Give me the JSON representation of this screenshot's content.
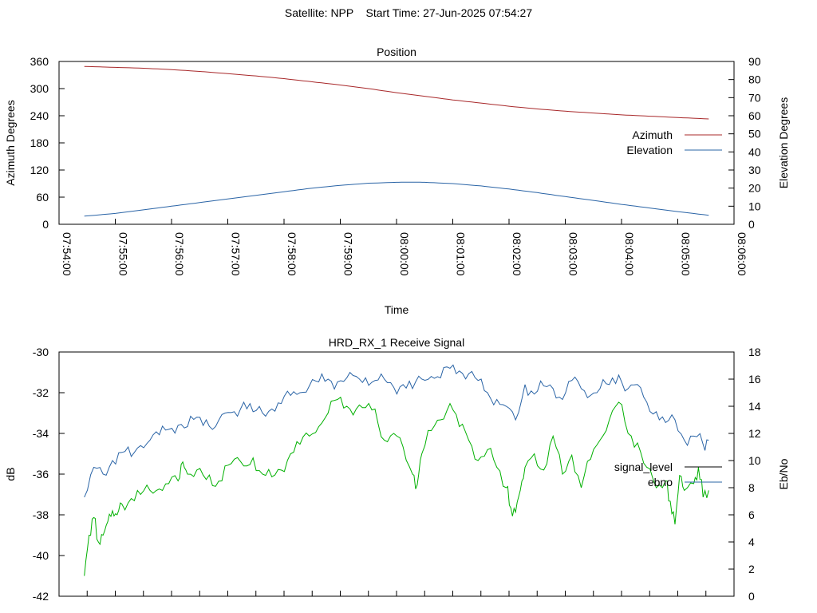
{
  "header": {
    "satellite": "Satellite: NPP",
    "start_time": "Start Time: 27-Jun-2025 07:54:27"
  },
  "chart_data": [
    {
      "type": "line",
      "title": "Position",
      "xlabel": "Time",
      "ylabel": "Azimuth Degrees",
      "y2label": "Elevation Degrees",
      "x_ticks": [
        "07:54:00",
        "07:55:00",
        "07:56:00",
        "07:57:00",
        "07:58:00",
        "07:59:00",
        "08:00:00",
        "08:01:00",
        "08:02:00",
        "08:03:00",
        "08:04:00",
        "08:05:00",
        "08:06:00"
      ],
      "xlim": [
        "07:54:00",
        "08:06:00"
      ],
      "ylim": [
        0,
        360
      ],
      "y_ticks": [
        0,
        60,
        120,
        180,
        240,
        300,
        360
      ],
      "y2lim": [
        0,
        90
      ],
      "y2_ticks": [
        0,
        10,
        20,
        30,
        40,
        50,
        60,
        70,
        80,
        90
      ],
      "legend": "right",
      "grid": false,
      "series": [
        {
          "name": "Azimuth",
          "axis": "y",
          "color": "#a8282a",
          "points": [
            [
              "07:54:27",
              349
            ],
            [
              "07:55:00",
              347
            ],
            [
              "07:55:30",
              345
            ],
            [
              "07:56:00",
              342
            ],
            [
              "07:56:30",
              338
            ],
            [
              "07:57:00",
              333
            ],
            [
              "07:57:30",
              328
            ],
            [
              "07:58:00",
              322
            ],
            [
              "07:58:30",
              315
            ],
            [
              "07:59:00",
              308
            ],
            [
              "07:59:30",
              300
            ],
            [
              "08:00:00",
              291
            ],
            [
              "08:00:30",
              283
            ],
            [
              "08:01:00",
              275
            ],
            [
              "08:01:30",
              268
            ],
            [
              "08:02:00",
              261
            ],
            [
              "08:02:30",
              255
            ],
            [
              "08:03:00",
              250
            ],
            [
              "08:03:30",
              246
            ],
            [
              "08:04:00",
              242
            ],
            [
              "08:04:30",
              239
            ],
            [
              "08:05:00",
              236
            ],
            [
              "08:05:33",
              233
            ]
          ]
        },
        {
          "name": "Elevation",
          "axis": "y2",
          "color": "#2a64a6",
          "points": [
            [
              "07:54:27",
              4.5
            ],
            [
              "07:55:00",
              6
            ],
            [
              "07:55:30",
              8
            ],
            [
              "07:56:00",
              10
            ],
            [
              "07:56:30",
              12
            ],
            [
              "07:57:00",
              14
            ],
            [
              "07:57:30",
              16
            ],
            [
              "07:58:00",
              18
            ],
            [
              "07:58:30",
              20
            ],
            [
              "07:59:00",
              21.5
            ],
            [
              "07:59:30",
              22.7
            ],
            [
              "08:00:00",
              23.2
            ],
            [
              "08:00:15",
              23.3
            ],
            [
              "08:00:30",
              23.2
            ],
            [
              "08:01:00",
              22.5
            ],
            [
              "08:01:30",
              21.2
            ],
            [
              "08:02:00",
              19.5
            ],
            [
              "08:02:30",
              17.5
            ],
            [
              "08:03:00",
              15.3
            ],
            [
              "08:03:30",
              13.2
            ],
            [
              "08:04:00",
              11
            ],
            [
              "08:04:30",
              9
            ],
            [
              "08:05:00",
              7
            ],
            [
              "08:05:33",
              5
            ]
          ]
        }
      ]
    },
    {
      "type": "line",
      "title": "HRD_RX_1 Receive Signal",
      "ylabel": "dB",
      "y2label": "Eb/No",
      "xlim": [
        "07:54:00",
        "08:06:00"
      ],
      "ylim": [
        -42,
        -30
      ],
      "y_ticks": [
        -42,
        -40,
        -38,
        -36,
        -34,
        -32,
        -30
      ],
      "y2lim": [
        0,
        18
      ],
      "y2_ticks": [
        0,
        2,
        4,
        6,
        8,
        10,
        12,
        14,
        16,
        18
      ],
      "legend": "right",
      "grid": false,
      "series": [
        {
          "name": "signal_level",
          "axis": "y",
          "color": "#000000",
          "points": []
        },
        {
          "name": "ebno",
          "axis": "y2",
          "color": "#2a64a6",
          "points": [
            [
              "07:54:27",
              7.3
            ],
            [
              "07:54:37",
              9.5
            ],
            [
              "07:54:47",
              9.0
            ],
            [
              "07:54:57",
              10.0
            ],
            [
              "07:55:07",
              10.6
            ],
            [
              "07:55:17",
              10.3
            ],
            [
              "07:55:27",
              11.1
            ],
            [
              "07:55:37",
              11.5
            ],
            [
              "07:55:47",
              11.9
            ],
            [
              "07:55:57",
              12.3
            ],
            [
              "07:56:07",
              12.6
            ],
            [
              "07:56:17",
              12.5
            ],
            [
              "07:56:27",
              13.2
            ],
            [
              "07:56:37",
              13.0
            ],
            [
              "07:56:47",
              12.5
            ],
            [
              "07:56:57",
              13.5
            ],
            [
              "07:57:07",
              13.6
            ],
            [
              "07:57:17",
              14.3
            ],
            [
              "07:57:27",
              13.6
            ],
            [
              "07:57:37",
              13.5
            ],
            [
              "07:57:47",
              13.8
            ],
            [
              "07:57:57",
              14.2
            ],
            [
              "07:58:07",
              14.8
            ],
            [
              "07:58:17",
              15.0
            ],
            [
              "07:58:27",
              15.5
            ],
            [
              "07:58:37",
              15.8
            ],
            [
              "07:58:47",
              16.0
            ],
            [
              "07:58:57",
              15.8
            ],
            [
              "07:59:07",
              16.1
            ],
            [
              "07:59:17",
              16.2
            ],
            [
              "07:59:27",
              16.1
            ],
            [
              "07:59:37",
              15.9
            ],
            [
              "07:59:47",
              16.0
            ],
            [
              "07:59:57",
              15.4
            ],
            [
              "08:00:07",
              15.6
            ],
            [
              "08:00:17",
              15.3
            ],
            [
              "08:00:27",
              16.0
            ],
            [
              "08:00:37",
              16.2
            ],
            [
              "08:00:47",
              16.1
            ],
            [
              "08:00:57",
              16.8
            ],
            [
              "08:01:07",
              16.6
            ],
            [
              "08:01:17",
              16.4
            ],
            [
              "08:01:27",
              15.9
            ],
            [
              "08:01:37",
              15.0
            ],
            [
              "08:01:47",
              14.5
            ],
            [
              "08:01:57",
              14.0
            ],
            [
              "08:02:07",
              13.0
            ],
            [
              "08:02:17",
              15.6
            ],
            [
              "08:02:27",
              14.9
            ],
            [
              "08:02:37",
              15.5
            ],
            [
              "08:02:47",
              15.3
            ],
            [
              "08:02:57",
              14.5
            ],
            [
              "08:03:07",
              15.9
            ],
            [
              "08:03:17",
              15.3
            ],
            [
              "08:03:27",
              14.8
            ],
            [
              "08:03:37",
              15.3
            ],
            [
              "08:03:47",
              15.6
            ],
            [
              "08:03:57",
              16.3
            ],
            [
              "08:04:07",
              15.3
            ],
            [
              "08:04:17",
              15.6
            ],
            [
              "08:04:27",
              14.3
            ],
            [
              "08:04:37",
              13.6
            ],
            [
              "08:04:47",
              12.8
            ],
            [
              "08:04:57",
              13.0
            ],
            [
              "08:05:07",
              11.5
            ],
            [
              "08:05:17",
              11.8
            ],
            [
              "08:05:27",
              11.2
            ],
            [
              "08:05:33",
              11.5
            ]
          ]
        },
        {
          "name": "",
          "axis": "y2",
          "color": "#00b000",
          "points": [
            [
              "07:54:27",
              1.5
            ],
            [
              "07:54:32",
              4.5
            ],
            [
              "07:54:37",
              5.8
            ],
            [
              "07:54:42",
              4.0
            ],
            [
              "07:54:47",
              4.5
            ],
            [
              "07:54:52",
              5.5
            ],
            [
              "07:54:57",
              6.3
            ],
            [
              "07:55:02",
              6.0
            ],
            [
              "07:55:07",
              6.8
            ],
            [
              "07:55:17",
              7.2
            ],
            [
              "07:55:27",
              7.5
            ],
            [
              "07:55:37",
              7.8
            ],
            [
              "07:55:47",
              7.9
            ],
            [
              "07:55:57",
              8.3
            ],
            [
              "07:56:07",
              8.5
            ],
            [
              "07:56:12",
              9.9
            ],
            [
              "07:56:17",
              9.0
            ],
            [
              "07:56:27",
              9.3
            ],
            [
              "07:56:37",
              8.6
            ],
            [
              "07:56:47",
              8.1
            ],
            [
              "07:56:57",
              9.6
            ],
            [
              "07:57:07",
              10.1
            ],
            [
              "07:57:17",
              9.6
            ],
            [
              "07:57:27",
              10.2
            ],
            [
              "07:57:37",
              9.0
            ],
            [
              "07:57:47",
              8.8
            ],
            [
              "07:57:57",
              9.3
            ],
            [
              "07:58:07",
              10.5
            ],
            [
              "07:58:17",
              11.2
            ],
            [
              "07:58:27",
              11.8
            ],
            [
              "07:58:37",
              12.5
            ],
            [
              "07:58:47",
              13.5
            ],
            [
              "07:58:57",
              14.5
            ],
            [
              "07:59:07",
              14.0
            ],
            [
              "07:59:17",
              13.8
            ],
            [
              "07:59:27",
              13.9
            ],
            [
              "07:59:37",
              13.8
            ],
            [
              "07:59:47",
              11.5
            ],
            [
              "07:59:57",
              12.0
            ],
            [
              "08:00:07",
              11.0
            ],
            [
              "08:00:17",
              9.0
            ],
            [
              "08:00:22",
              8.2
            ],
            [
              "08:00:27",
              10.5
            ],
            [
              "08:00:37",
              12.2
            ],
            [
              "08:00:47",
              13.0
            ],
            [
              "08:00:57",
              14.2
            ],
            [
              "08:01:07",
              12.5
            ],
            [
              "08:01:17",
              11.5
            ],
            [
              "08:01:27",
              10.0
            ],
            [
              "08:01:37",
              10.8
            ],
            [
              "08:01:47",
              9.5
            ],
            [
              "08:01:57",
              8.0
            ],
            [
              "08:02:02",
              6.5
            ],
            [
              "08:02:07",
              6.2
            ],
            [
              "08:02:12",
              7.8
            ],
            [
              "08:02:17",
              9.5
            ],
            [
              "08:02:27",
              10.5
            ],
            [
              "08:02:37",
              9.3
            ],
            [
              "08:02:47",
              11.8
            ],
            [
              "08:02:57",
              9.0
            ],
            [
              "08:03:07",
              10.4
            ],
            [
              "08:03:17",
              8.0
            ],
            [
              "08:03:27",
              10.1
            ],
            [
              "08:03:37",
              11.5
            ],
            [
              "08:03:47",
              13.0
            ],
            [
              "08:03:57",
              14.3
            ],
            [
              "08:04:07",
              12.0
            ],
            [
              "08:04:17",
              11.3
            ],
            [
              "08:04:27",
              9.5
            ],
            [
              "08:04:37",
              8.0
            ],
            [
              "08:04:47",
              8.5
            ],
            [
              "08:04:52",
              7.0
            ],
            [
              "08:04:57",
              5.3
            ],
            [
              "08:05:02",
              8.9
            ],
            [
              "08:05:07",
              7.8
            ],
            [
              "08:05:17",
              8.3
            ],
            [
              "08:05:22",
              9.5
            ],
            [
              "08:05:27",
              7.3
            ],
            [
              "08:05:33",
              7.8
            ]
          ]
        }
      ]
    }
  ]
}
